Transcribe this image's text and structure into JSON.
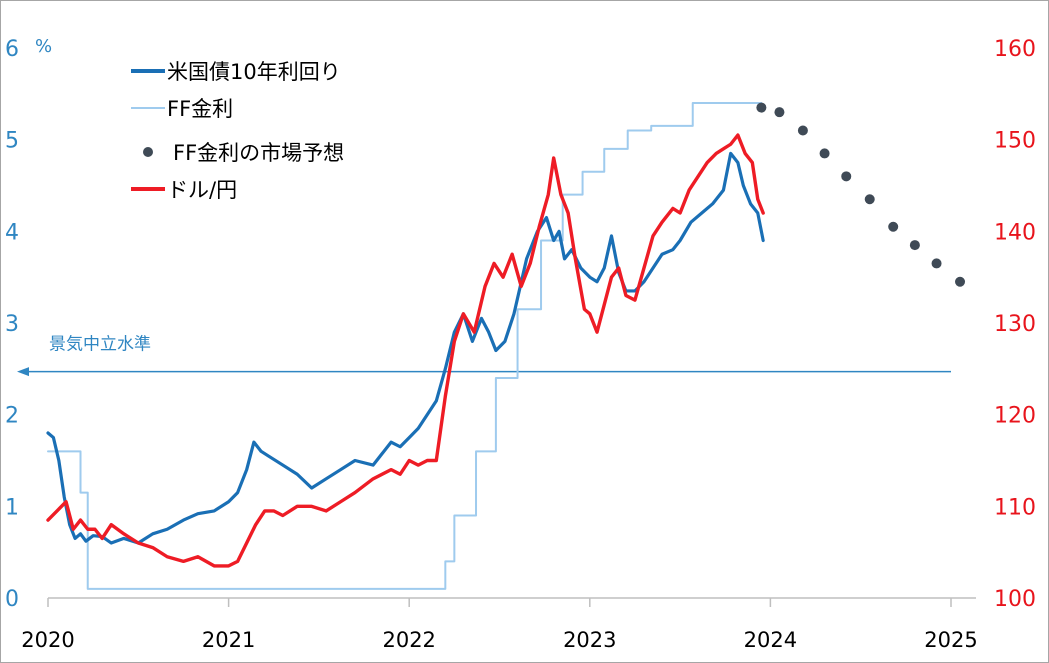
{
  "chart_data": {
    "type": "line",
    "title": "",
    "xlabel": "",
    "x_range": [
      2020.0,
      2025.1
    ],
    "x_ticks": [
      "2020",
      "2021",
      "2022",
      "2023",
      "2024",
      "2025"
    ],
    "y_left": {
      "unit": "%",
      "range": [
        0,
        6
      ],
      "ticks": [
        "0",
        "1",
        "2",
        "3",
        "4",
        "5",
        "6"
      ]
    },
    "y_right": {
      "range": [
        100,
        160
      ],
      "ticks": [
        "100",
        "110",
        "120",
        "130",
        "140",
        "150",
        "160"
      ]
    },
    "grid": false,
    "legend_position": "top-left",
    "annotation": {
      "text": "景気中立水準",
      "y": 2.47
    },
    "colors": {
      "treasury": "#1a6fb5",
      "ff": "#9fcbee",
      "forecast": "#3f4a56",
      "usdjpy": "#ee1c25",
      "axis_left": "#2f86c2",
      "axis_right": "#e8141c"
    },
    "series": [
      {
        "name": "米国債10年利回り",
        "axis": "left",
        "style": "line",
        "x": [
          2020.0,
          2020.03,
          2020.06,
          2020.09,
          2020.12,
          2020.15,
          2020.18,
          2020.21,
          2020.25,
          2020.3,
          2020.35,
          2020.42,
          2020.5,
          2020.58,
          2020.66,
          2020.75,
          2020.83,
          2020.92,
          2021.0,
          2021.05,
          2021.1,
          2021.14,
          2021.18,
          2021.22,
          2021.3,
          2021.38,
          2021.46,
          2021.54,
          2021.62,
          2021.7,
          2021.8,
          2021.9,
          2021.95,
          2022.0,
          2022.05,
          2022.1,
          2022.15,
          2022.2,
          2022.25,
          2022.3,
          2022.35,
          2022.4,
          2022.44,
          2022.48,
          2022.53,
          2022.58,
          2022.65,
          2022.71,
          2022.76,
          2022.8,
          2022.83,
          2022.86,
          2022.9,
          2022.95,
          2023.0,
          2023.04,
          2023.08,
          2023.12,
          2023.16,
          2023.2,
          2023.25,
          2023.3,
          2023.35,
          2023.4,
          2023.46,
          2023.5,
          2023.56,
          2023.62,
          2023.68,
          2023.74,
          2023.78,
          2023.82,
          2023.85,
          2023.89,
          2023.93,
          2023.96
        ],
        "values": [
          1.8,
          1.75,
          1.5,
          1.1,
          0.8,
          0.65,
          0.7,
          0.62,
          0.68,
          0.67,
          0.6,
          0.65,
          0.6,
          0.7,
          0.75,
          0.85,
          0.92,
          0.95,
          1.05,
          1.15,
          1.4,
          1.7,
          1.6,
          1.55,
          1.45,
          1.35,
          1.2,
          1.3,
          1.4,
          1.5,
          1.45,
          1.7,
          1.65,
          1.75,
          1.85,
          2.0,
          2.15,
          2.5,
          2.9,
          3.1,
          2.8,
          3.05,
          2.9,
          2.7,
          2.8,
          3.1,
          3.7,
          4.0,
          4.15,
          3.9,
          4.0,
          3.7,
          3.8,
          3.6,
          3.5,
          3.45,
          3.6,
          3.95,
          3.55,
          3.35,
          3.35,
          3.45,
          3.6,
          3.75,
          3.8,
          3.9,
          4.1,
          4.2,
          4.3,
          4.45,
          4.85,
          4.75,
          4.5,
          4.3,
          4.2,
          3.9
        ]
      },
      {
        "name": "FF金利",
        "axis": "left",
        "style": "step",
        "x": [
          2020.0,
          2020.18,
          2020.22,
          2022.2,
          2022.25,
          2022.37,
          2022.48,
          2022.6,
          2022.73,
          2022.85,
          2022.96,
          2023.08,
          2023.21,
          2023.34,
          2023.57,
          2023.95
        ],
        "values": [
          1.6,
          1.15,
          0.1,
          0.4,
          0.9,
          1.6,
          2.4,
          3.15,
          3.9,
          4.4,
          4.65,
          4.9,
          5.1,
          5.15,
          5.4,
          5.4
        ]
      },
      {
        "name": "FF金利の市場予想",
        "axis": "left",
        "style": "dots",
        "x": [
          2023.95,
          2024.05,
          2024.18,
          2024.3,
          2024.42,
          2024.55,
          2024.68,
          2024.8,
          2024.92,
          2025.05
        ],
        "values": [
          5.35,
          5.3,
          5.1,
          4.85,
          4.6,
          4.35,
          4.05,
          3.85,
          3.65,
          3.45
        ]
      },
      {
        "name": "ドル/円",
        "axis": "right",
        "style": "line",
        "x": [
          2020.0,
          2020.05,
          2020.1,
          2020.14,
          2020.18,
          2020.22,
          2020.26,
          2020.3,
          2020.35,
          2020.42,
          2020.5,
          2020.58,
          2020.66,
          2020.75,
          2020.83,
          2020.92,
          2021.0,
          2021.05,
          2021.1,
          2021.15,
          2021.2,
          2021.25,
          2021.3,
          2021.38,
          2021.46,
          2021.54,
          2021.62,
          2021.7,
          2021.8,
          2021.9,
          2021.95,
          2022.0,
          2022.05,
          2022.1,
          2022.15,
          2022.2,
          2022.25,
          2022.3,
          2022.36,
          2022.42,
          2022.47,
          2022.52,
          2022.57,
          2022.62,
          2022.67,
          2022.72,
          2022.77,
          2022.8,
          2022.84,
          2022.88,
          2022.92,
          2022.97,
          2023.0,
          2023.04,
          2023.08,
          2023.12,
          2023.16,
          2023.2,
          2023.25,
          2023.3,
          2023.35,
          2023.4,
          2023.46,
          2023.5,
          2023.55,
          2023.6,
          2023.65,
          2023.7,
          2023.74,
          2023.78,
          2023.82,
          2023.86,
          2023.9,
          2023.93,
          2023.96
        ],
        "values": [
          108.5,
          109.5,
          110.5,
          107.5,
          108.5,
          107.5,
          107.5,
          106.5,
          108.0,
          107.0,
          106.0,
          105.5,
          104.5,
          104.0,
          104.5,
          103.5,
          103.5,
          104.0,
          106.0,
          108.0,
          109.5,
          109.5,
          109.0,
          110.0,
          110.0,
          109.5,
          110.5,
          111.5,
          113.0,
          114.0,
          113.5,
          115.0,
          114.5,
          115.0,
          115.0,
          122.0,
          128.0,
          131.0,
          129.0,
          134.0,
          136.5,
          135.0,
          137.5,
          134.0,
          136.5,
          140.5,
          144.0,
          148.0,
          144.0,
          142.0,
          137.0,
          131.5,
          131.0,
          129.0,
          132.0,
          135.0,
          136.0,
          133.0,
          132.5,
          136.0,
          139.5,
          141.0,
          142.5,
          142.0,
          144.5,
          146.0,
          147.5,
          148.5,
          149.0,
          149.5,
          150.5,
          148.5,
          147.5,
          143.5,
          142.0
        ]
      }
    ]
  }
}
